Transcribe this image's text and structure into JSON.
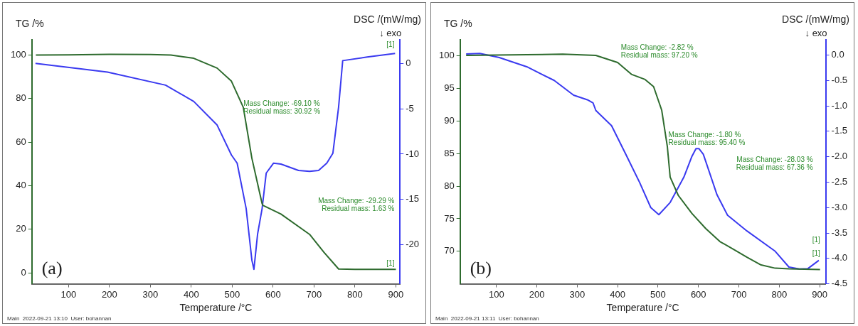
{
  "chart_data": [
    {
      "type": "line",
      "title": "(a)",
      "xlabel": "Temperature /°C",
      "ylabel": "TG /%",
      "y2label": "DSC /(mW/mg)",
      "xlim": [
        10,
        910
      ],
      "xticks": [
        100,
        200,
        300,
        400,
        500,
        600,
        700,
        800,
        900
      ],
      "ylim": [
        -5,
        107
      ],
      "yticks": [
        0,
        20,
        40,
        60,
        80,
        100
      ],
      "y2lim": [
        -24.3,
        2.6
      ],
      "y2ticks": [
        -20,
        -15,
        -10,
        -5,
        0
      ],
      "series": [
        {
          "name": null,
          "color": "#2e6b2e",
          "x": [
            20,
            100,
            200,
            300,
            350,
            406,
            463,
            498,
            527,
            548,
            566,
            573,
            575,
            619,
            689,
            724,
            760,
            800,
            900
          ],
          "values": [
            100,
            100.1,
            100.3,
            100.2,
            100,
            98.5,
            94,
            88,
            76,
            52.6,
            37.6,
            31.8,
            31,
            27,
            17.7,
            9.5,
            1.8,
            1.6,
            1.6
          ]
        },
        {
          "name": null,
          "color": "#3a3af0",
          "axis": "y2",
          "x": [
            19,
            195,
            337,
            406,
            463,
            498,
            512,
            534,
            548,
            553,
            562,
            573,
            583,
            601,
            619,
            662,
            689,
            711,
            731,
            746,
            760,
            770,
            830,
            898
          ],
          "values": [
            0,
            -0.96,
            -2.4,
            -4.2,
            -6.8,
            -10.1,
            -11,
            -16,
            -21.7,
            -22.7,
            -18.8,
            -16,
            -12.1,
            -11,
            -11.1,
            -11.8,
            -11.9,
            -11.8,
            -11,
            -9.9,
            -4.8,
            0.3,
            0.7,
            1.1
          ]
        }
      ],
      "annotations": [
        "↓ exo",
        "Mass Change: -69.10 %\nResidual mass: 30.92 %",
        "Mass Change: -29.29 %\nResidual mass: 1.63 %",
        "[1]",
        "[1]",
        "Main  2022-09-21 13:10  User: bohannan"
      ]
    },
    {
      "type": "line",
      "title": "(b)",
      "xlabel": "Temperature /°C",
      "ylabel": "TG /%",
      "y2label": "DSC /(mW/mg)",
      "xlim": [
        10,
        915
      ],
      "xticks": [
        100,
        200,
        300,
        400,
        500,
        600,
        700,
        800,
        900
      ],
      "ylim": [
        65,
        102.5
      ],
      "yticks": [
        70,
        75,
        80,
        85,
        90,
        95,
        100
      ],
      "y2lim": [
        -4.5,
        0.3
      ],
      "y2ticks": [
        {
          "value": -4.5,
          "label": "-4.5"
        },
        {
          "value": -4,
          "label": "-4.0"
        },
        {
          "value": -3.5,
          "label": "-3.5"
        },
        {
          "value": -3,
          "label": "-3.0"
        },
        {
          "value": -2.5,
          "label": "-2.5"
        },
        {
          "value": -2,
          "label": "-2.0"
        },
        {
          "value": -1.5,
          "label": "-1.5"
        },
        {
          "value": -1,
          "label": "-1.0"
        },
        {
          "value": -0.5,
          "label": "-0.5"
        },
        {
          "value": 0,
          "label": "0.0"
        }
      ],
      "series": [
        {
          "name": null,
          "color": "#2e6b2e",
          "x": [
            25,
            175,
            264,
            346,
            400,
            434,
            468,
            489,
            509,
            523,
            530,
            550,
            584,
            618,
            653,
            687,
            720,
            755,
            790,
            824,
            901
          ],
          "values": [
            100.1,
            100.2,
            100.3,
            100.1,
            99,
            97.2,
            96.4,
            95.3,
            91.7,
            86.1,
            81.4,
            78.6,
            75.8,
            73.5,
            71.5,
            70.3,
            69.1,
            67.9,
            67.4,
            67.3,
            67.2
          ]
        },
        {
          "name": null,
          "color": "#3a3af0",
          "axis": "y2",
          "x": [
            25,
            59,
            107,
            175,
            243,
            291,
            325,
            339,
            346,
            385,
            420,
            454,
            482,
            502,
            530,
            564,
            584,
            594,
            601,
            612,
            618,
            646,
            672,
            720,
            790,
            824,
            850,
            871,
            898
          ],
          "values": [
            0.02,
            0.03,
            -0.05,
            -0.23,
            -0.5,
            -0.79,
            -0.88,
            -0.94,
            -1.09,
            -1.39,
            -1.95,
            -2.5,
            -3,
            -3.14,
            -2.9,
            -2.4,
            -1.99,
            -1.84,
            -1.84,
            -1.95,
            -2.09,
            -2.75,
            -3.15,
            -3.46,
            -3.86,
            -4.17,
            -4.21,
            -4.2,
            -4.04
          ]
        }
      ],
      "annotations": [
        "↓ exo",
        "Mass Change: -2.82 %\nResidual mass: 97.20 %",
        "Mass Change: -1.80 %\nResidual mass: 95.40 %",
        "Mass Change: -28.03 %\nResidual mass: 67.36 %",
        "[1]",
        "[1]",
        "Main  2022-09-21 13:11  User: bohannan"
      ]
    }
  ]
}
